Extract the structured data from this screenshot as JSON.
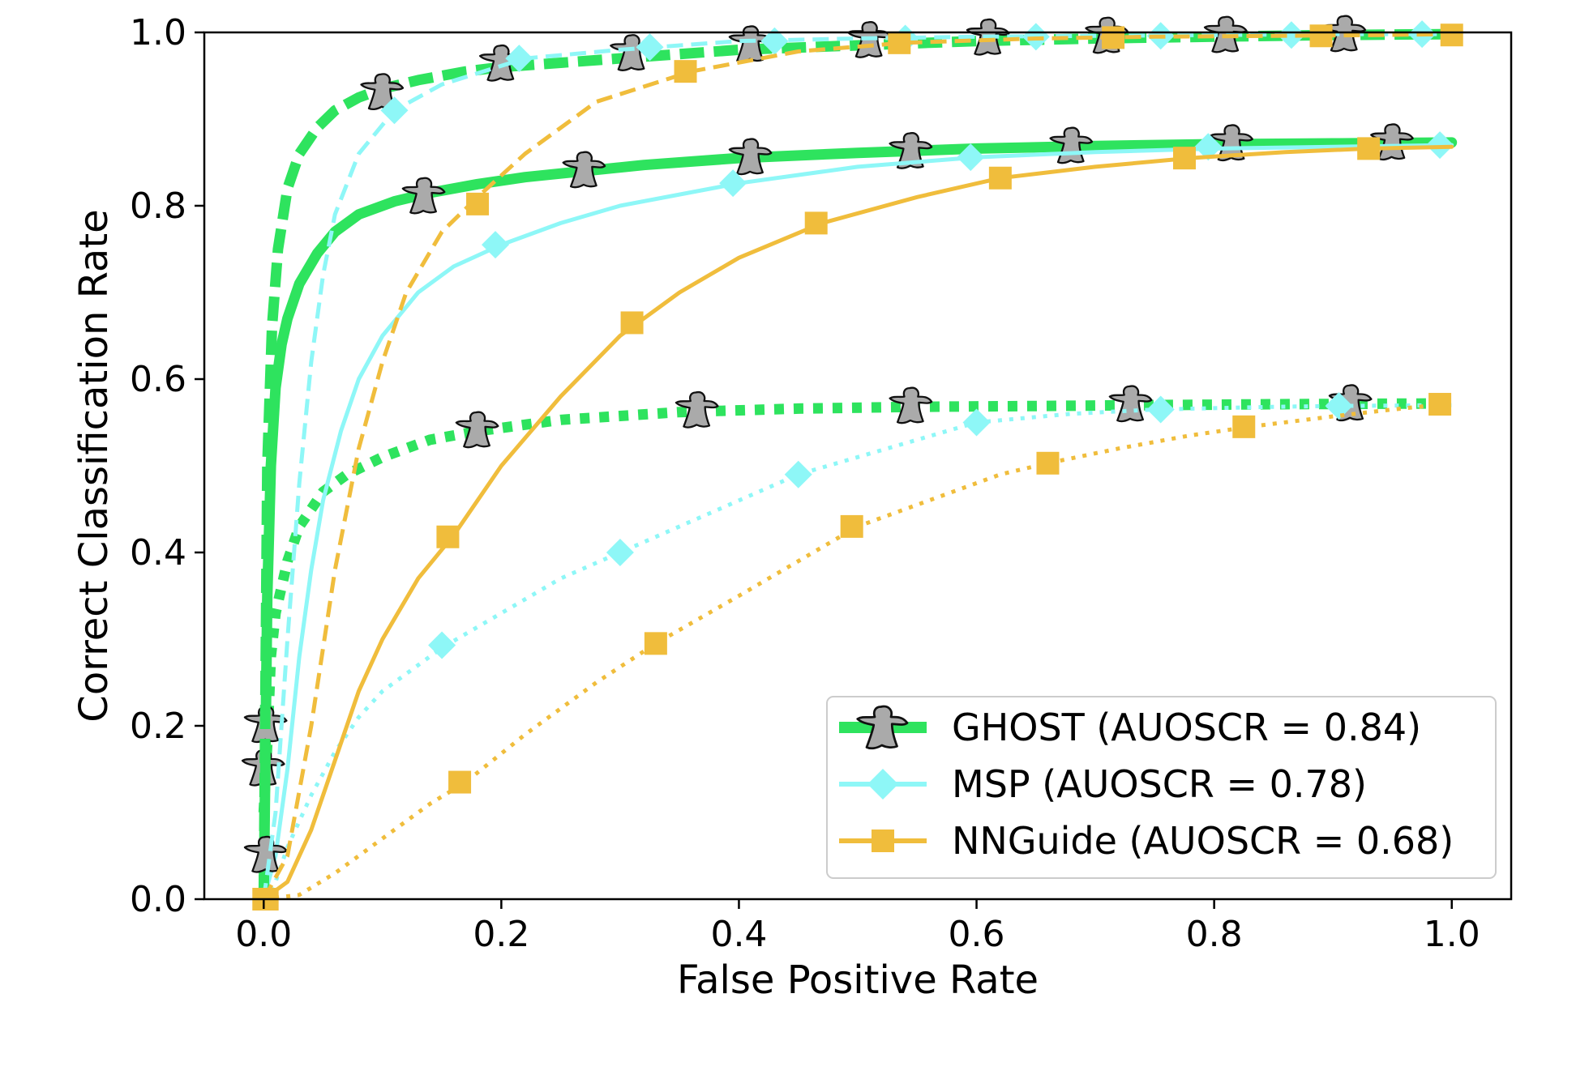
{
  "chart_data": {
    "type": "line",
    "title": "",
    "xlabel": "False Positive Rate",
    "ylabel": "Correct Classification Rate",
    "xlim": [
      -0.05,
      1.05
    ],
    "ylim": [
      0.0,
      1.0
    ],
    "xticks": [
      0.0,
      0.2,
      0.4,
      0.6,
      0.8,
      1.0
    ],
    "xtick_labels": [
      "0.0",
      "0.2",
      "0.4",
      "0.6",
      "0.8",
      "1.0"
    ],
    "yticks": [
      0.0,
      0.2,
      0.4,
      0.6,
      0.8,
      1.0
    ],
    "ytick_labels": [
      "0.0",
      "0.2",
      "0.4",
      "0.6",
      "0.8",
      "1.0"
    ],
    "grid": false,
    "legend_position": "bottom-right",
    "legend": [
      {
        "label": "GHOST (AUOSCR = 0.84)",
        "color": "#2ee35e",
        "marker": "ghost-icon"
      },
      {
        "label": "MSP (AUOSCR = 0.78)",
        "color": "#8ef7f7",
        "marker": "diamond"
      },
      {
        "label": "NNGuide (AUOSCR = 0.68)",
        "color": "#f0bd3c",
        "marker": "square"
      }
    ],
    "series": [
      {
        "method": "GHOST",
        "style": "dashed",
        "color": "#2ee35e",
        "marker": "ghost-icon",
        "x": [
          0.0,
          0.003,
          0.007,
          0.012,
          0.02,
          0.03,
          0.045,
          0.06,
          0.08,
          0.1,
          0.13,
          0.17,
          0.2,
          0.25,
          0.3,
          0.35,
          0.4,
          0.5,
          0.6,
          0.7,
          0.8,
          0.9,
          1.0
        ],
        "y": [
          0.0,
          0.5,
          0.66,
          0.75,
          0.82,
          0.86,
          0.89,
          0.91,
          0.925,
          0.935,
          0.945,
          0.955,
          0.96,
          0.965,
          0.97,
          0.975,
          0.98,
          0.985,
          0.99,
          0.993,
          0.995,
          0.997,
          0.998
        ],
        "markers_x": [
          0.002,
          0.1,
          0.2,
          0.31,
          0.41,
          0.51,
          0.61,
          0.71,
          0.81,
          0.91
        ],
        "markers_y": [
          0.05,
          0.93,
          0.963,
          0.975,
          0.985,
          0.99,
          0.993,
          0.995,
          0.996,
          0.997
        ]
      },
      {
        "method": "MSP",
        "style": "dashed",
        "color": "#8ef7f7",
        "marker": "diamond",
        "x": [
          0.0,
          0.01,
          0.02,
          0.03,
          0.04,
          0.05,
          0.06,
          0.08,
          0.11,
          0.15,
          0.22,
          0.3,
          0.4,
          0.5,
          0.6,
          0.7,
          0.8,
          0.9,
          1.0
        ],
        "y": [
          0.0,
          0.1,
          0.3,
          0.48,
          0.62,
          0.72,
          0.79,
          0.86,
          0.91,
          0.94,
          0.97,
          0.98,
          0.99,
          0.993,
          0.995,
          0.996,
          0.997,
          0.998,
          0.998
        ],
        "markers_x": [
          0.11,
          0.215,
          0.325,
          0.43,
          0.54,
          0.65,
          0.755,
          0.865,
          0.975
        ],
        "markers_y": [
          0.91,
          0.97,
          0.983,
          0.99,
          0.993,
          0.995,
          0.996,
          0.997,
          0.998
        ]
      },
      {
        "method": "NNGuide",
        "style": "dashed",
        "color": "#f0bd3c",
        "marker": "square",
        "x": [
          0.0,
          0.02,
          0.04,
          0.06,
          0.08,
          0.1,
          0.12,
          0.15,
          0.18,
          0.22,
          0.28,
          0.36,
          0.45,
          0.54,
          0.65,
          0.75,
          0.85,
          0.94,
          1.0
        ],
        "y": [
          0.0,
          0.05,
          0.2,
          0.38,
          0.52,
          0.62,
          0.7,
          0.77,
          0.81,
          0.86,
          0.92,
          0.955,
          0.978,
          0.988,
          0.993,
          0.995,
          0.996,
          0.997,
          0.998
        ],
        "markers_x": [
          0.003,
          0.18,
          0.355,
          0.535,
          0.715,
          0.89,
          1.0
        ],
        "markers_y": [
          0.0,
          0.802,
          0.955,
          0.988,
          0.994,
          0.996,
          0.997
        ]
      },
      {
        "method": "GHOST",
        "style": "solid",
        "color": "#2ee35e",
        "marker": "ghost-icon",
        "x": [
          0.0,
          0.003,
          0.006,
          0.01,
          0.015,
          0.02,
          0.03,
          0.045,
          0.06,
          0.08,
          0.11,
          0.14,
          0.18,
          0.22,
          0.27,
          0.32,
          0.4,
          0.5,
          0.6,
          0.7,
          0.8,
          0.9,
          1.0
        ],
        "y": [
          0.0,
          0.35,
          0.5,
          0.59,
          0.64,
          0.67,
          0.71,
          0.745,
          0.77,
          0.79,
          0.805,
          0.815,
          0.825,
          0.833,
          0.84,
          0.847,
          0.855,
          0.861,
          0.866,
          0.869,
          0.871,
          0.872,
          0.873
        ],
        "markers_x": [
          0.002,
          0.135,
          0.27,
          0.41,
          0.545,
          0.68,
          0.815,
          0.95
        ],
        "markers_y": [
          0.2,
          0.81,
          0.84,
          0.855,
          0.862,
          0.868,
          0.871,
          0.872
        ]
      },
      {
        "method": "MSP",
        "style": "solid",
        "color": "#8ef7f7",
        "marker": "diamond",
        "x": [
          0.0,
          0.01,
          0.02,
          0.03,
          0.04,
          0.05,
          0.065,
          0.08,
          0.1,
          0.13,
          0.16,
          0.2,
          0.25,
          0.3,
          0.4,
          0.5,
          0.6,
          0.7,
          0.8,
          0.9,
          1.0
        ],
        "y": [
          0.0,
          0.05,
          0.15,
          0.28,
          0.38,
          0.46,
          0.54,
          0.6,
          0.65,
          0.7,
          0.73,
          0.755,
          0.78,
          0.8,
          0.826,
          0.845,
          0.856,
          0.862,
          0.866,
          0.868,
          0.87
        ],
        "markers_x": [
          0.195,
          0.395,
          0.595,
          0.795,
          0.99
        ],
        "markers_y": [
          0.755,
          0.826,
          0.856,
          0.868,
          0.87
        ]
      },
      {
        "method": "NNGuide",
        "style": "solid",
        "color": "#f0bd3c",
        "marker": "square",
        "x": [
          0.0,
          0.02,
          0.04,
          0.06,
          0.08,
          0.1,
          0.13,
          0.16,
          0.2,
          0.25,
          0.3,
          0.35,
          0.4,
          0.47,
          0.55,
          0.62,
          0.7,
          0.78,
          0.86,
          0.93,
          1.0
        ],
        "y": [
          0.0,
          0.02,
          0.08,
          0.16,
          0.24,
          0.3,
          0.37,
          0.42,
          0.5,
          0.58,
          0.65,
          0.7,
          0.74,
          0.78,
          0.81,
          0.832,
          0.845,
          0.855,
          0.862,
          0.866,
          0.868
        ],
        "markers_x": [
          0.0,
          0.155,
          0.31,
          0.465,
          0.62,
          0.775,
          0.93
        ],
        "markers_y": [
          0.0,
          0.418,
          0.665,
          0.78,
          0.832,
          0.855,
          0.866
        ]
      },
      {
        "method": "GHOST",
        "style": "dotted",
        "color": "#2ee35e",
        "marker": "ghost-icon",
        "x": [
          0.0,
          0.003,
          0.006,
          0.01,
          0.02,
          0.03,
          0.05,
          0.07,
          0.1,
          0.14,
          0.18,
          0.25,
          0.35,
          0.45,
          0.55,
          0.65,
          0.75,
          0.85,
          1.0
        ],
        "y": [
          0.1,
          0.18,
          0.28,
          0.33,
          0.39,
          0.43,
          0.47,
          0.49,
          0.51,
          0.53,
          0.54,
          0.553,
          0.562,
          0.566,
          0.568,
          0.569,
          0.57,
          0.571,
          0.572
        ],
        "markers_x": [
          0.0,
          0.18,
          0.365,
          0.545,
          0.73,
          0.915
        ],
        "markers_y": [
          0.15,
          0.54,
          0.563,
          0.568,
          0.57,
          0.571
        ]
      },
      {
        "method": "MSP",
        "style": "dotted",
        "color": "#8ef7f7",
        "marker": "diamond",
        "x": [
          0.0,
          0.01,
          0.02,
          0.04,
          0.06,
          0.08,
          0.1,
          0.12,
          0.15,
          0.2,
          0.25,
          0.3,
          0.35,
          0.4,
          0.45,
          0.5,
          0.55,
          0.6,
          0.68,
          0.75,
          0.85,
          0.9,
          1.0
        ],
        "y": [
          0.0,
          0.02,
          0.06,
          0.12,
          0.17,
          0.21,
          0.24,
          0.26,
          0.29,
          0.33,
          0.37,
          0.4,
          0.43,
          0.46,
          0.49,
          0.51,
          0.53,
          0.55,
          0.56,
          0.565,
          0.568,
          0.569,
          0.57
        ],
        "markers_x": [
          0.15,
          0.3,
          0.45,
          0.6,
          0.755,
          0.905
        ],
        "markers_y": [
          0.293,
          0.4,
          0.49,
          0.55,
          0.565,
          0.569
        ]
      },
      {
        "method": "NNGuide",
        "style": "dotted",
        "color": "#f0bd3c",
        "marker": "square",
        "x": [
          0.0,
          0.03,
          0.06,
          0.1,
          0.14,
          0.17,
          0.22,
          0.28,
          0.33,
          0.4,
          0.45,
          0.5,
          0.56,
          0.62,
          0.66,
          0.72,
          0.78,
          0.83,
          0.9,
          0.95,
          1.0
        ],
        "y": [
          0.0,
          0.005,
          0.03,
          0.07,
          0.11,
          0.135,
          0.19,
          0.25,
          0.295,
          0.35,
          0.39,
          0.43,
          0.46,
          0.49,
          0.503,
          0.52,
          0.535,
          0.545,
          0.557,
          0.565,
          0.572
        ],
        "markers_x": [
          0.165,
          0.33,
          0.495,
          0.66,
          0.825,
          0.99
        ],
        "markers_y": [
          0.135,
          0.295,
          0.43,
          0.503,
          0.545,
          0.571
        ]
      }
    ]
  }
}
